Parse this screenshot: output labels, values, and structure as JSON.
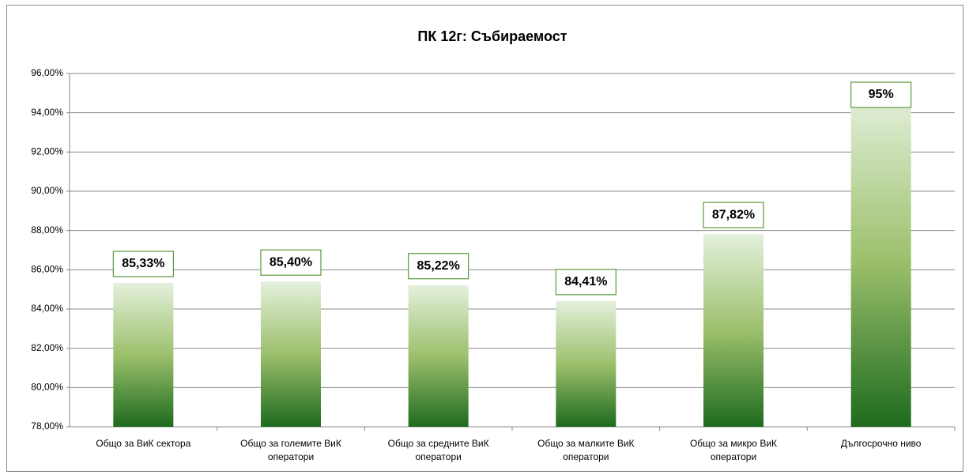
{
  "chart_data": {
    "type": "bar",
    "title": "ПК 12г: Събираемост",
    "categories": [
      "Общо за ВиК сектора",
      "Общо за големите ВиК оператори",
      "Общо за средните ВиК оператори",
      "Общо за малките ВиК оператори",
      "Общо за микро ВиК оператори",
      "Дългосрочно ниво"
    ],
    "values": [
      85.33,
      85.4,
      85.22,
      84.41,
      87.82,
      95
    ],
    "value_labels": [
      "85,33%",
      "85,40%",
      "85,22%",
      "84,41%",
      "87,82%",
      "95%"
    ],
    "color": "#1e6b1e",
    "ylim": [
      78,
      96
    ],
    "yticks": [
      {
        "value": 78,
        "label": "78,00%"
      },
      {
        "value": 80,
        "label": "80,00%"
      },
      {
        "value": 82,
        "label": "82,00%"
      },
      {
        "value": 84,
        "label": "84,00%"
      },
      {
        "value": 86,
        "label": "86,00%"
      },
      {
        "value": 88,
        "label": "88,00%"
      },
      {
        "value": 90,
        "label": "90,00%"
      },
      {
        "value": 92,
        "label": "92,00%"
      },
      {
        "value": 94,
        "label": "94,00%"
      },
      {
        "value": 96,
        "label": "96,00%"
      }
    ],
    "grid": true
  }
}
